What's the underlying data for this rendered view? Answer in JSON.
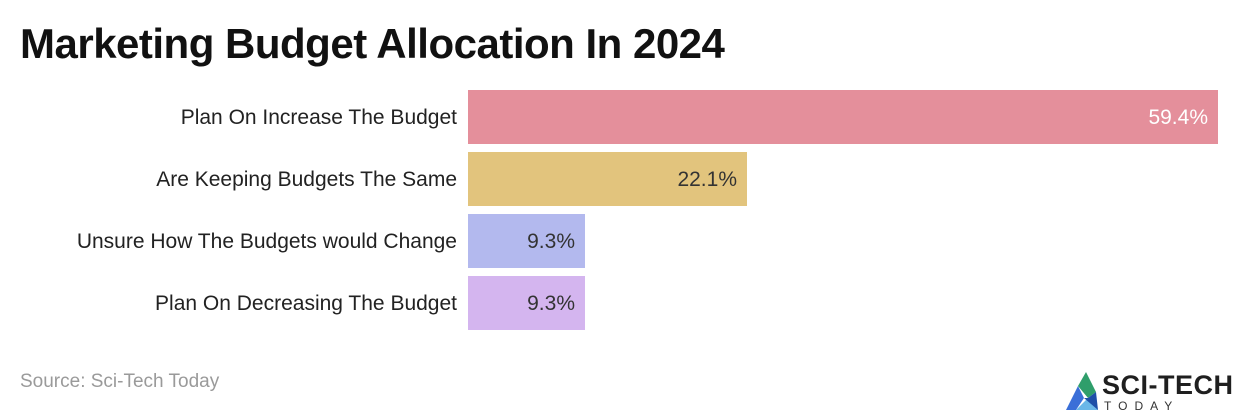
{
  "chart_data": {
    "type": "bar",
    "orientation": "horizontal",
    "title": "Marketing Budget Allocation In 2024",
    "categories": [
      "Plan On Increase The Budget",
      "Are Keeping Budgets The Same",
      "Unsure How The Budgets would Change",
      "Plan On Decreasing The Budget"
    ],
    "values": [
      59.4,
      22.1,
      9.3,
      9.3
    ],
    "data_labels": [
      "59.4%",
      "22.1%",
      "9.3%",
      "9.3%"
    ],
    "colors": [
      "#e48f9b",
      "#e2c47d",
      "#b3b9ee",
      "#d4b5ef"
    ],
    "label_colors": [
      "#ffffff",
      "#333333",
      "#333333",
      "#333333"
    ],
    "xlim": [
      0,
      59.4
    ],
    "grid": false,
    "legend": "none"
  },
  "source": "Source: Sci-Tech Today",
  "logo": {
    "name": "SCI-TECH",
    "sub": "TODAY",
    "icon": "triangle-logo-icon"
  }
}
